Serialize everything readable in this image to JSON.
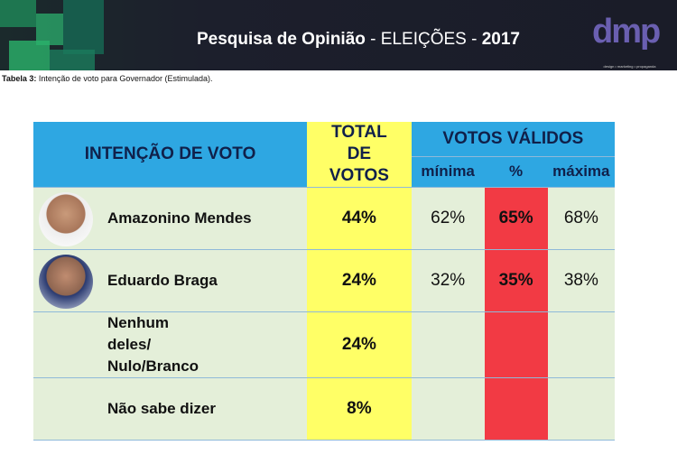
{
  "banner": {
    "title_bold": "Pesquisa de Opinião",
    "title_rest": " - ELEIÇÕES - ",
    "year": "2017",
    "logo": "dmp",
    "logo_sub": "design • marketing • propaganda"
  },
  "caption": {
    "label": "Tabela  3:",
    "text": " Intenção de voto para Governador (Estimulada)."
  },
  "table": {
    "headers": {
      "intencao": "INTENÇÃO DE VOTO",
      "total": "TOTAL DE VOTOS",
      "validos": "VOTOS VÁLIDOS",
      "minima": "mínima",
      "pct": "%",
      "maxima": "máxima"
    },
    "rows": [
      {
        "name": "Amazonino Mendes",
        "total": "44%",
        "minima": "62%",
        "pct": "65%",
        "maxima": "68%"
      },
      {
        "name": "Eduardo Braga",
        "total": "24%",
        "minima": "32%",
        "pct": "35%",
        "maxima": "38%"
      },
      {
        "name": "Nenhum deles/ Nulo/Branco",
        "total": "24%",
        "minima": "",
        "pct": "",
        "maxima": ""
      },
      {
        "name": "Não sabe dizer",
        "total": "8%",
        "minima": "",
        "pct": "",
        "maxima": ""
      }
    ]
  },
  "colors": {
    "header": "#2ea7e2",
    "total": "#ffff66",
    "pct": "#f23a44",
    "row": "#e4efd9"
  }
}
